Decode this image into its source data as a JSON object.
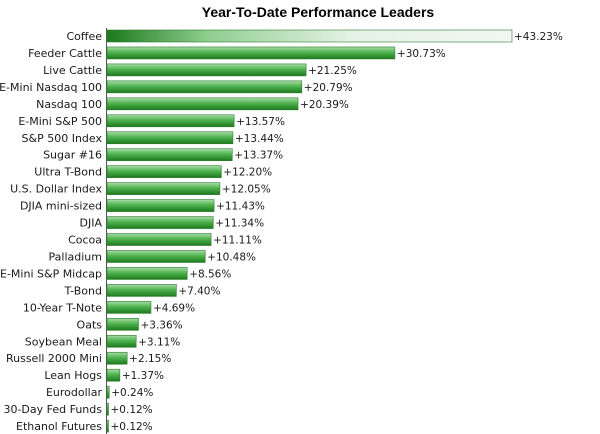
{
  "chart_data": {
    "type": "bar",
    "orientation": "horizontal",
    "title": "Year-To-Date Performance Leaders",
    "xlim": [
      0,
      43.23
    ],
    "grid": false,
    "legend": "none",
    "categories": [
      "Coffee",
      "Feeder Cattle",
      "Live Cattle",
      "E-Mini Nasdaq 100",
      "Nasdaq 100",
      "E-Mini S&P 500",
      "S&P 500 Index",
      "Sugar #16",
      "Ultra T-Bond",
      "U.S. Dollar Index",
      "DJIA mini-sized",
      "DJIA",
      "Cocoa",
      "Palladium",
      "E-Mini S&P Midcap",
      "T-Bond",
      "10-Year T-Note",
      "Oats",
      "Soybean Meal",
      "Russell 2000 Mini",
      "Lean Hogs",
      "Eurodollar",
      "30-Day Fed Funds",
      "Ethanol Futures"
    ],
    "values": [
      43.23,
      30.73,
      21.25,
      20.79,
      20.39,
      13.57,
      13.44,
      13.37,
      12.2,
      12.05,
      11.43,
      11.34,
      11.11,
      10.48,
      8.56,
      7.4,
      4.69,
      3.36,
      3.11,
      2.15,
      1.37,
      0.24,
      0.12,
      0.12
    ],
    "value_labels": [
      "+43.23%",
      "+30.73%",
      "+21.25%",
      "+20.79%",
      "+20.39%",
      "+13.57%",
      "+13.44%",
      "+13.37%",
      "+12.20%",
      "+12.05%",
      "+11.43%",
      "+11.34%",
      "+11.11%",
      "+10.48%",
      "+8.56%",
      "+7.40%",
      "+4.69%",
      "+3.36%",
      "+3.11%",
      "+2.15%",
      "+1.37%",
      "+0.24%",
      "+0.12%",
      "+0.12%"
    ],
    "colors": {
      "bar_dark": "#1c7a1c",
      "bar_mid": "#4fb34f",
      "bar_light": "#a8dca8",
      "top_bar_light": "#f2f7f2",
      "axis": "#555555"
    }
  }
}
